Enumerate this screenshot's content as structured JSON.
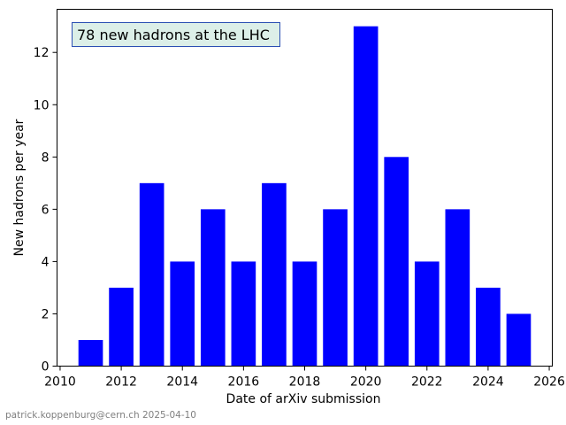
{
  "chart_data": {
    "type": "bar",
    "x": [
      2011,
      2012,
      2013,
      2014,
      2015,
      2016,
      2017,
      2018,
      2019,
      2020,
      2021,
      2022,
      2023,
      2024,
      2025
    ],
    "values": [
      1,
      3,
      7,
      4,
      6,
      4,
      7,
      4,
      6,
      13,
      8,
      4,
      6,
      3,
      2
    ],
    "bar_color": "#0000ff",
    "annotation": "78 new hadrons at the LHC",
    "annotation_box_fill": "#dcefe8",
    "annotation_box_edge": "#2b4fb3",
    "xlabel": "Date of arXiv submission",
    "ylabel": "New hadrons per year",
    "xlim": [
      2009.9,
      2026.1
    ],
    "ylim": [
      0,
      13.65
    ],
    "xticks": [
      2010,
      2012,
      2014,
      2016,
      2018,
      2020,
      2022,
      2024,
      2026
    ],
    "yticks": [
      0,
      2,
      4,
      6,
      8,
      10,
      12
    ],
    "grid": false
  },
  "footer": "patrick.koppenburg@cern.ch 2025-04-10"
}
